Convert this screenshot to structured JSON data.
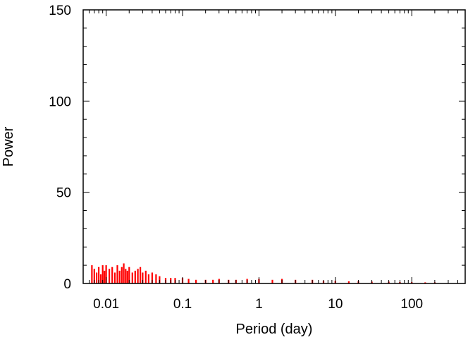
{
  "chart_data": {
    "type": "area",
    "xlabel": "Period (day)",
    "ylabel": "Power",
    "x_scale": "log",
    "xlim": [
      0.005,
      500
    ],
    "ylim": [
      0,
      150
    ],
    "x_ticks": [
      {
        "value": 0.01,
        "label": "0.01"
      },
      {
        "value": 0.1,
        "label": "0.1"
      },
      {
        "value": 1,
        "label": "1"
      },
      {
        "value": 10,
        "label": "10"
      },
      {
        "value": 100,
        "label": "100"
      }
    ],
    "y_ticks": [
      {
        "value": 0,
        "label": "0"
      },
      {
        "value": 50,
        "label": "50"
      },
      {
        "value": 100,
        "label": "100"
      },
      {
        "value": 150,
        "label": "150"
      }
    ],
    "grid": false,
    "series": [
      {
        "color": "#ff0000",
        "x": [
          0.0065,
          0.007,
          0.0075,
          0.008,
          0.0085,
          0.009,
          0.0095,
          0.01,
          0.011,
          0.012,
          0.013,
          0.014,
          0.015,
          0.016,
          0.017,
          0.018,
          0.019,
          0.02,
          0.022,
          0.024,
          0.026,
          0.028,
          0.03,
          0.033,
          0.036,
          0.04,
          0.045,
          0.05,
          0.06,
          0.07,
          0.08,
          0.1,
          0.12,
          0.15,
          0.2,
          0.25,
          0.3,
          0.4,
          0.5,
          0.7,
          1,
          1.5,
          2,
          3,
          5,
          7,
          10,
          15,
          20,
          30,
          50,
          70,
          100,
          150,
          200
        ],
        "y": [
          10,
          8,
          6,
          9,
          5,
          10,
          7,
          10,
          8,
          9,
          6,
          10,
          7,
          9,
          11,
          8,
          7,
          9,
          6,
          7,
          8,
          9,
          6,
          7,
          5,
          6,
          5,
          4,
          3,
          3,
          3,
          3,
          2.5,
          2,
          2,
          2,
          2.5,
          2,
          2,
          2.5,
          2.5,
          2,
          2.5,
          2,
          2,
          1.5,
          1.5,
          1.2,
          1.2,
          1,
          1,
          0.8,
          0.8,
          0.6,
          0.6
        ]
      }
    ]
  }
}
